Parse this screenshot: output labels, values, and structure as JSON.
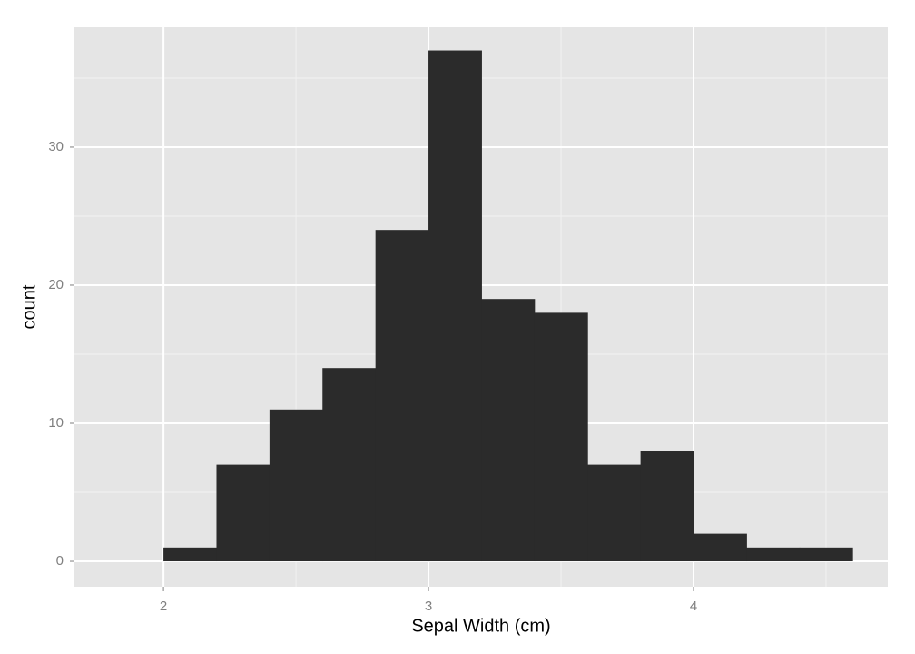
{
  "chart_data": {
    "type": "histogram",
    "x_label": "Sepal Width (cm)",
    "y_label": "count",
    "bins": [
      2,
      2.2,
      2.4,
      2.6,
      2.8,
      3,
      3.2,
      3.4,
      3.6,
      3.8,
      4,
      4.2,
      4.4,
      4.6
    ],
    "counts": [
      1,
      7,
      11,
      14,
      24,
      37,
      19,
      18,
      7,
      8,
      2,
      1,
      1
    ],
    "color": "#2b2b2b",
    "xlim": [
      1.664,
      4.733
    ],
    "ylim": [
      -1.84,
      38.68
    ],
    "xticks": [
      2,
      3,
      4
    ],
    "yticks": [
      0,
      10,
      20,
      30
    ],
    "x_minor_ticks": [
      2.5,
      3.5,
      4.5
    ],
    "y_minor_ticks": [
      5,
      15,
      25,
      35
    ],
    "grid": true
  }
}
